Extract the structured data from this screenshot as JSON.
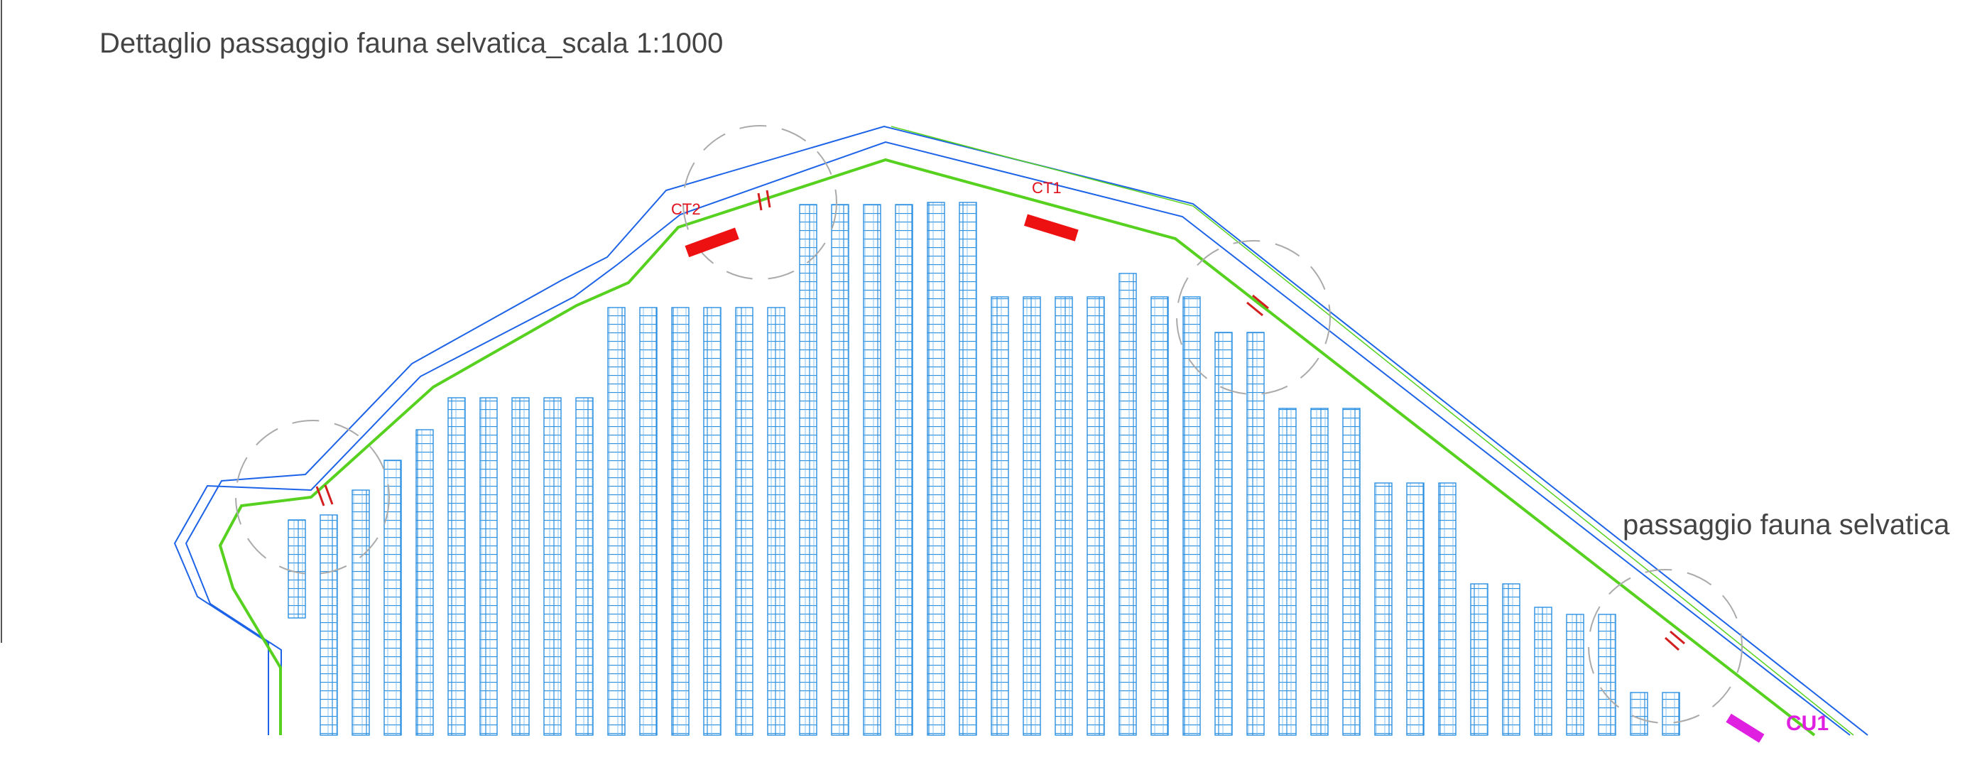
{
  "title": "Dettaglio passaggio fauna selvatica_scala 1:1000",
  "callout_label": "passaggio fauna selvatica",
  "cabin_labels": {
    "ct1": "CT1",
    "ct2": "CT2",
    "cu1": "CU1"
  },
  "colors": {
    "fence": "#1d63e8",
    "green_line": "#57d11f",
    "panel_stroke": "#2b8fe0",
    "cabin": "#ee1111",
    "cu_marker": "#e020e0",
    "gate_mark": "#d21e1e",
    "circle_dash": "#aaaaaa",
    "text": "#444444"
  }
}
